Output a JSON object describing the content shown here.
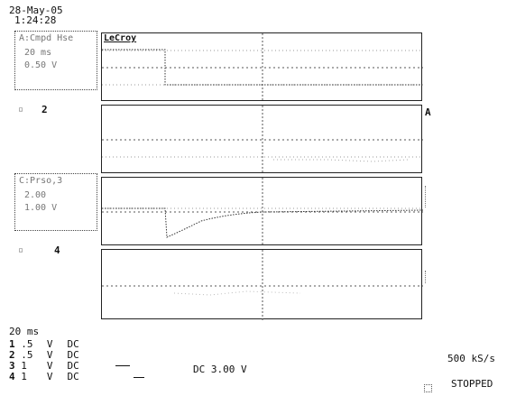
{
  "header": {
    "date": "28-May-05",
    "time": "1:24:28"
  },
  "brand": "LeCroy",
  "channels": [
    {
      "label": "A:Cmpd Hse",
      "line1": "20 ms",
      "line2": "0.50 V"
    },
    {
      "label": "2",
      "line1": "",
      "line2": ""
    },
    {
      "label": "C:Prso,3",
      "line1": "2.00",
      "line2": "1.00 V"
    },
    {
      "label": "4",
      "line1": "",
      "line2": ""
    }
  ],
  "right_markers": [
    "A"
  ],
  "timebase": "20 ms",
  "bottom_channels": [
    {
      "num": "1",
      "scale": ".5",
      "unit": "V",
      "coupling": "DC"
    },
    {
      "num": "2",
      "scale": ".5",
      "unit": "V",
      "coupling": "DC"
    },
    {
      "num": "3",
      "scale": "1",
      "unit": "V",
      "coupling": "DC"
    },
    {
      "num": "4",
      "scale": "1",
      "unit": "V",
      "coupling": "DC"
    }
  ],
  "trigger_text": "DC 3.00 V",
  "sample_rate": "500 kS/s",
  "status": "STOPPED"
}
